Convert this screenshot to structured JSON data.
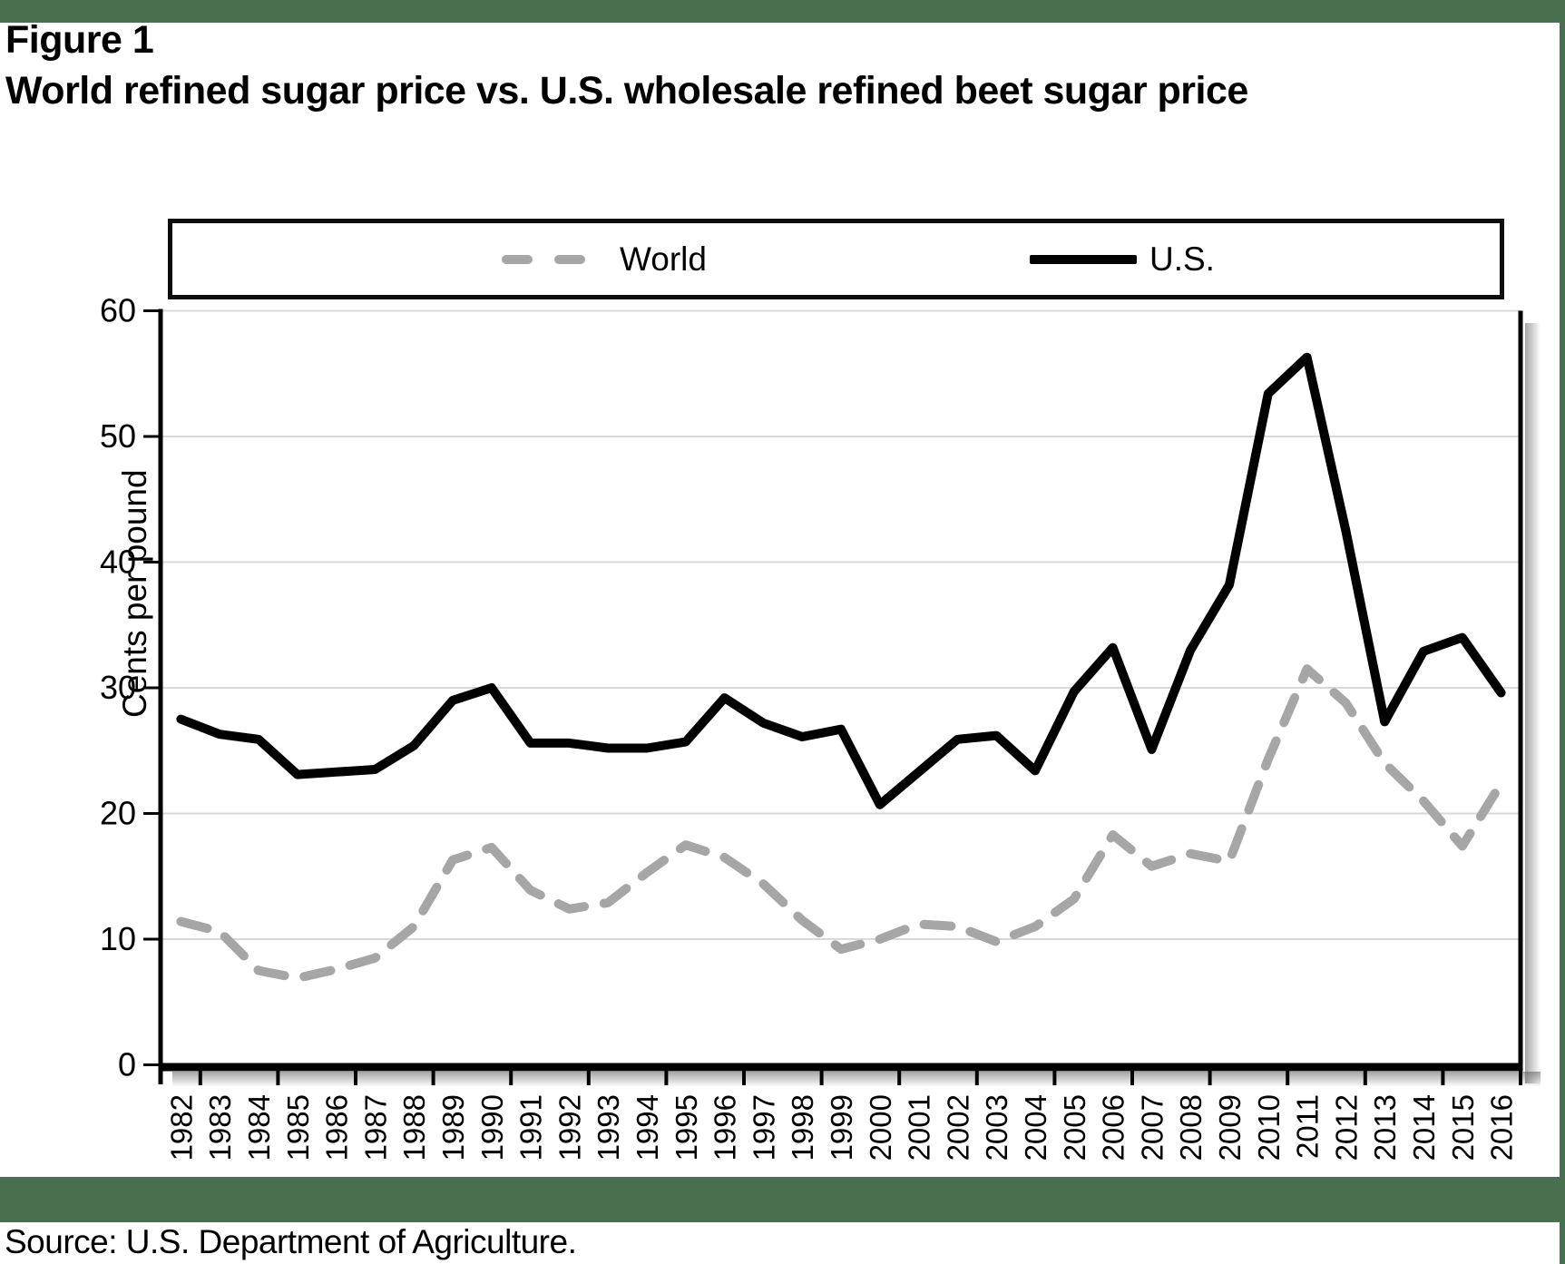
{
  "page": {
    "background": "#ffffff",
    "accent_green": "#487050"
  },
  "header": {
    "figure_label": "Figure 1",
    "title": "World refined sugar price vs. U.S. wholesale refined beet sugar price"
  },
  "legend": {
    "world_label": "World",
    "us_label": "U.S."
  },
  "chart_data": {
    "type": "line",
    "x": [
      1982,
      1983,
      1984,
      1985,
      1986,
      1987,
      1988,
      1989,
      1990,
      1991,
      1992,
      1993,
      1994,
      1995,
      1996,
      1997,
      1998,
      1999,
      2000,
      2001,
      2002,
      2003,
      2004,
      2005,
      2006,
      2007,
      2008,
      2009,
      2010,
      2011,
      2012,
      2013,
      2014,
      2015,
      2016
    ],
    "series": [
      {
        "name": "World",
        "color": "#a6a6a6",
        "style": "dashed",
        "values": [
          11.4,
          10.6,
          7.5,
          6.9,
          7.6,
          8.5,
          11.0,
          16.3,
          17.3,
          13.9,
          12.4,
          12.9,
          15.3,
          17.5,
          16.5,
          14.4,
          11.5,
          9.2,
          10.0,
          11.2,
          11.0,
          9.8,
          11.0,
          13.2,
          18.3,
          15.8,
          16.8,
          16.2,
          24.3,
          31.5,
          28.8,
          24.0,
          21.0,
          17.4,
          22.4
        ]
      },
      {
        "name": "U.S.",
        "color": "#000000",
        "style": "solid",
        "values": [
          27.5,
          26.3,
          25.9,
          23.1,
          23.3,
          23.5,
          25.4,
          29.0,
          30.0,
          25.6,
          25.6,
          25.2,
          25.2,
          25.7,
          29.2,
          27.2,
          26.1,
          26.7,
          20.7,
          23.3,
          25.9,
          26.2,
          23.4,
          29.7,
          33.2,
          25.1,
          33.0,
          38.2,
          53.4,
          56.3,
          42.5,
          27.3,
          32.9,
          34.0,
          29.6
        ]
      }
    ],
    "ylabel": "Cents per pound",
    "xlabel": "",
    "ylim": [
      0,
      60
    ],
    "yticks": [
      0,
      10,
      20,
      30,
      40,
      50,
      60
    ],
    "grid": "horizontal",
    "gridline_color": "#d9d9d9",
    "legend_position": "top"
  },
  "footer": {
    "source": "Source: U.S. Department of Agriculture."
  }
}
